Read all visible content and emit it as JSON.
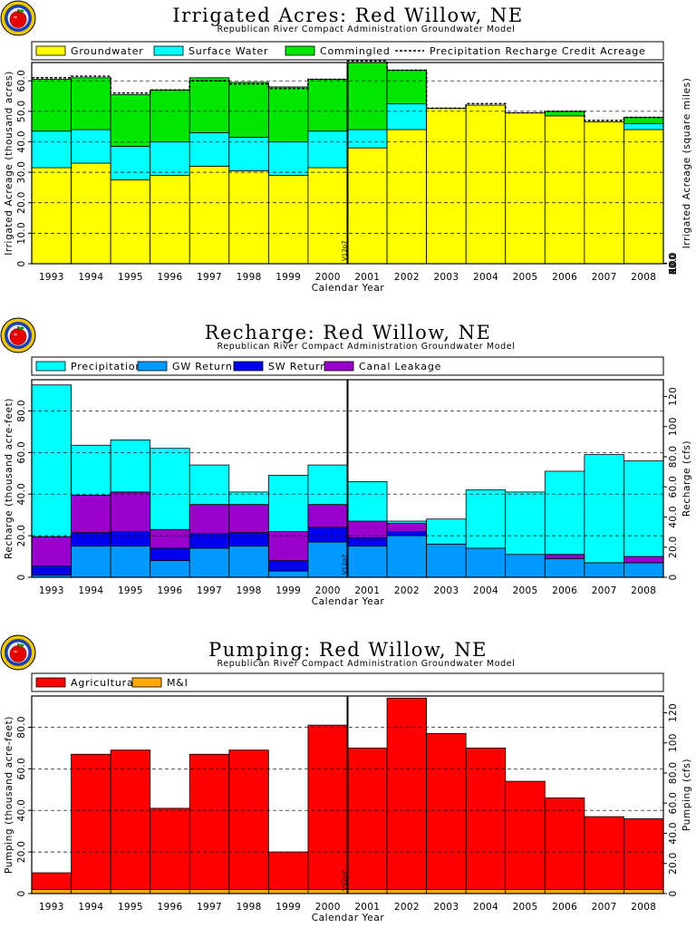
{
  "colors": {
    "groundwater": "#ffff00",
    "surface_water": "#00ffff",
    "commingled": "#00e600",
    "precipitation": "#00ffff",
    "gw_returns": "#0099ff",
    "sw_returns": "#0000ee",
    "canal_leakage": "#9900cc",
    "agricultural": "#ff0000",
    "mi": "#ffaa00"
  },
  "logo_icon": "apple-logo-icon",
  "chart_data": [
    {
      "type": "bar",
      "stacked": true,
      "title": "Irrigated Acres: Red Willow, NE",
      "subtitle": "Republican River Compact Administration Groundwater Model",
      "xlabel": "Calendar Year",
      "ylabel": "Irrigated Acreage (thousand acres)",
      "y2label": "Irrigated Acreage (square miles)",
      "categories": [
        "1993",
        "1994",
        "1995",
        "1996",
        "1997",
        "1998",
        "1999",
        "2000",
        "2001",
        "2002",
        "2003",
        "2004",
        "2005",
        "2006",
        "2007",
        "2008"
      ],
      "ylim": [
        0,
        66
      ],
      "yticks": [
        "0",
        "10.0",
        "20.0",
        "30.0",
        "40.0",
        "50.0",
        "60.0"
      ],
      "y2ticks": [
        "0",
        "20.0",
        "40.0",
        "60.0",
        "80.0",
        "100"
      ],
      "y2factor": 640,
      "grid": true,
      "legend": "top",
      "marker_label": "V12p7",
      "marker_after": "2000",
      "series": [
        {
          "name": "Groundwater",
          "values": [
            31.5,
            33,
            27.5,
            29,
            32,
            30.5,
            29,
            31.5,
            38,
            44,
            51,
            52,
            49.5,
            48.5,
            46.5,
            44
          ]
        },
        {
          "name": "Surface Water",
          "values": [
            12,
            11,
            11,
            11,
            11,
            11,
            11,
            12,
            6,
            8.5,
            0,
            0,
            0,
            0,
            0,
            2
          ]
        },
        {
          "name": "Commingled",
          "values": [
            17,
            17,
            17,
            17,
            18,
            18,
            18,
            17,
            22,
            11,
            0,
            0,
            0,
            1.5,
            0,
            2
          ]
        },
        {
          "name": "Precipitation Recharge Credit Acreage",
          "values": [
            61,
            61.5,
            56,
            57,
            60,
            59,
            57.5,
            60.5,
            66.5,
            63.5,
            51,
            52.5,
            49.5,
            50,
            47,
            48
          ]
        }
      ]
    },
    {
      "type": "bar",
      "stacked": true,
      "title": "Recharge: Red Willow, NE",
      "subtitle": "Republican River Compact Administration Groundwater Model",
      "xlabel": "Calendar Year",
      "ylabel": "Recharge (thousand acre-feet)",
      "y2label": "Recharge (cfs)",
      "categories": [
        "1993",
        "1994",
        "1995",
        "1996",
        "1997",
        "1998",
        "1999",
        "2000",
        "2001",
        "2002",
        "2003",
        "2004",
        "2005",
        "2006",
        "2007",
        "2008"
      ],
      "ylim": [
        0,
        95
      ],
      "yticks": [
        "0",
        "20.0",
        "40.0",
        "60.0",
        "80.0"
      ],
      "y2ticks": [
        "0",
        "20.0",
        "40.0",
        "60.0",
        "80.0",
        "100",
        "120"
      ],
      "y2factor": 1.38,
      "grid": true,
      "legend": "top",
      "marker_label": "V12p7",
      "marker_after": "2000",
      "series": [
        {
          "name": "Precipitation",
          "values": [
            73,
            24,
            25,
            39,
            19,
            6,
            27,
            19,
            19,
            1,
            12,
            28,
            30,
            40,
            52,
            46
          ]
        },
        {
          "name": "GW Returns",
          "values": [
            1,
            15,
            15,
            8,
            14,
            15,
            3,
            17,
            15,
            20,
            16,
            14,
            11,
            9,
            7,
            7
          ]
        },
        {
          "name": "SW Returns",
          "values": [
            4.5,
            6.5,
            7,
            6,
            7,
            6.5,
            5,
            7,
            4,
            2,
            0,
            0,
            0,
            0,
            0,
            0
          ]
        },
        {
          "name": "Canal Leakage",
          "values": [
            14,
            18,
            19,
            9,
            14,
            13.5,
            14,
            11,
            8,
            4,
            0,
            0,
            0,
            2,
            0,
            3
          ]
        }
      ]
    },
    {
      "type": "bar",
      "stacked": true,
      "title": "Pumping: Red Willow, NE",
      "subtitle": "Republican River Compact Administration Groundwater Model",
      "xlabel": "Calendar Year",
      "ylabel": "Pumping (thousand acre-feet)",
      "y2label": "Pumping (cfs)",
      "categories": [
        "1993",
        "1994",
        "1995",
        "1996",
        "1997",
        "1998",
        "1999",
        "2000",
        "2001",
        "2002",
        "2003",
        "2004",
        "2005",
        "2006",
        "2007",
        "2008"
      ],
      "ylim": [
        0,
        95
      ],
      "yticks": [
        "0",
        "20.0",
        "40.0",
        "60.0",
        "80.0"
      ],
      "y2ticks": [
        "0",
        "20.0",
        "40.0",
        "60.0",
        "80.0",
        "100",
        "120"
      ],
      "y2factor": 1.38,
      "grid": true,
      "legend": "top",
      "marker_label": "V12p7",
      "marker_after": "2000",
      "series": [
        {
          "name": "Agricultural",
          "values": [
            8,
            65,
            67,
            39,
            65,
            67,
            18,
            79,
            68,
            92,
            75,
            68,
            52,
            44,
            35,
            34
          ]
        },
        {
          "name": "M&I",
          "values": [
            2,
            2,
            2,
            2,
            2,
            2,
            2,
            2,
            2,
            2,
            2,
            2,
            2,
            2,
            2,
            2
          ]
        }
      ]
    }
  ]
}
